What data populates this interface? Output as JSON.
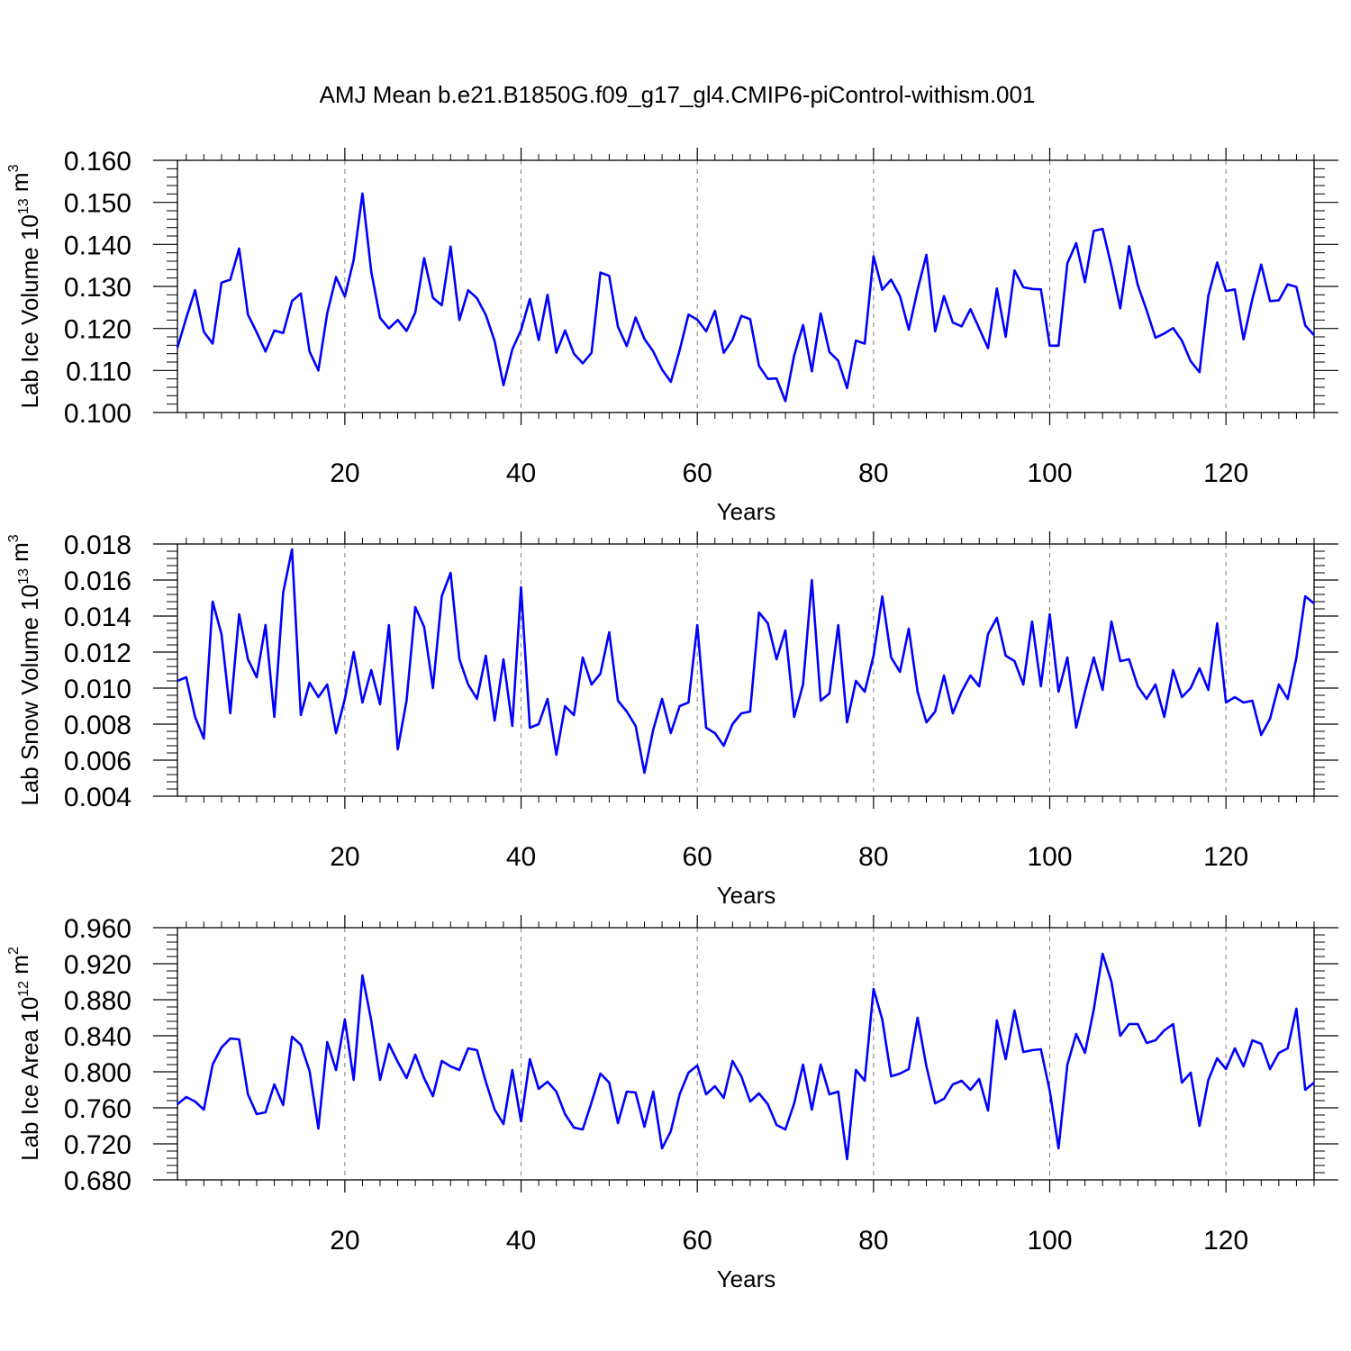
{
  "title": "AMJ Mean b.e21.B1850G.f09_g17_gl4.CMIP6-piControl-withism.001",
  "colors": {
    "series": "#0000ff",
    "axis": "#000000",
    "grid": "#808080"
  },
  "chart_data": [
    {
      "type": "line",
      "ylabel": {
        "text": "Lab Ice Volume 10",
        "sup1": "13",
        "mid": " m",
        "sup2": "3"
      },
      "xlabel": "Years",
      "xlim": [
        1,
        130
      ],
      "ylim": [
        0.1,
        0.16
      ],
      "xticks": [
        20,
        40,
        60,
        80,
        100,
        120
      ],
      "xtick_labels": [
        "20",
        "40",
        "60",
        "80",
        "100",
        "120"
      ],
      "yticks": [
        0.1,
        0.11,
        0.12,
        0.13,
        0.14,
        0.15,
        0.16
      ],
      "ytick_labels": [
        "0.100",
        "0.110",
        "0.120",
        "0.130",
        "0.140",
        "0.150",
        "0.160"
      ],
      "grid": "dashed vertical at x ticks",
      "x": [
        1,
        2,
        3,
        4,
        5,
        6,
        7,
        8,
        9,
        10,
        11,
        12,
        13,
        14,
        15,
        16,
        17,
        18,
        19,
        20,
        21,
        22,
        23,
        24,
        25,
        26,
        27,
        28,
        29,
        30,
        31,
        32,
        33,
        34,
        35,
        36,
        37,
        38,
        39,
        40,
        41,
        42,
        43,
        44,
        45,
        46,
        47,
        48,
        49,
        50,
        51,
        52,
        53,
        54,
        55,
        56,
        57,
        58,
        59,
        60,
        61,
        62,
        63,
        64,
        65,
        66,
        67,
        68,
        69,
        70,
        71,
        72,
        73,
        74,
        75,
        76,
        77,
        78,
        79,
        80,
        81,
        82,
        83,
        84,
        85,
        86,
        87,
        88,
        89,
        90,
        91,
        92,
        93,
        94,
        95,
        96,
        97,
        98,
        99,
        100,
        101,
        102,
        103,
        104,
        105,
        106,
        107,
        108,
        109,
        110,
        111,
        112,
        113,
        114,
        115,
        116,
        117,
        118,
        119,
        120,
        121,
        122,
        123,
        124,
        125,
        126,
        127,
        128,
        129,
        130
      ],
      "values": [
        0.1154,
        0.1225,
        0.1291,
        0.1192,
        0.1164,
        0.1309,
        0.1316,
        0.139,
        0.1233,
        0.1191,
        0.1145,
        0.1195,
        0.1189,
        0.1265,
        0.1283,
        0.1145,
        0.11,
        0.1236,
        0.1322,
        0.1276,
        0.1363,
        0.1521,
        0.1335,
        0.1225,
        0.12,
        0.122,
        0.1194,
        0.1238,
        0.1367,
        0.1273,
        0.1255,
        0.1395,
        0.122,
        0.1291,
        0.1272,
        0.1232,
        0.117,
        0.1065,
        0.115,
        0.1196,
        0.127,
        0.1172,
        0.128,
        0.1142,
        0.1195,
        0.114,
        0.1117,
        0.1142,
        0.1333,
        0.1325,
        0.1204,
        0.1158,
        0.1226,
        0.1175,
        0.1145,
        0.1102,
        0.1073,
        0.1148,
        0.1233,
        0.1221,
        0.1193,
        0.1242,
        0.1142,
        0.1173,
        0.123,
        0.1222,
        0.1111,
        0.108,
        0.1081,
        0.1027,
        0.1136,
        0.1208,
        0.1098,
        0.1236,
        0.1144,
        0.1123,
        0.1058,
        0.1171,
        0.1164,
        0.1372,
        0.1292,
        0.1316,
        0.1277,
        0.1197,
        0.1292,
        0.1375,
        0.1193,
        0.1277,
        0.1214,
        0.1205,
        0.1246,
        0.12,
        0.1153,
        0.1295,
        0.118,
        0.1338,
        0.1298,
        0.1294,
        0.1293,
        0.1159,
        0.1159,
        0.1355,
        0.1403,
        0.131,
        0.1432,
        0.1437,
        0.1348,
        0.1248,
        0.1396,
        0.1303,
        0.1243,
        0.1178,
        0.1188,
        0.1201,
        0.1171,
        0.1122,
        0.1096,
        0.1278,
        0.1357,
        0.1289,
        0.1293,
        0.1174,
        0.127,
        0.1352,
        0.1265,
        0.1267,
        0.1305,
        0.1299,
        0.1207,
        0.1184
      ]
    },
    {
      "type": "line",
      "ylabel": {
        "text": "Lab Snow Volume 10",
        "sup1": "13",
        "mid": " m",
        "sup2": "3"
      },
      "xlabel": "Years",
      "xlim": [
        1,
        130
      ],
      "ylim": [
        0.004,
        0.018
      ],
      "xticks": [
        20,
        40,
        60,
        80,
        100,
        120
      ],
      "xtick_labels": [
        "20",
        "40",
        "60",
        "80",
        "100",
        "120"
      ],
      "yticks": [
        0.004,
        0.006,
        0.008,
        0.01,
        0.012,
        0.014,
        0.016,
        0.018
      ],
      "ytick_labels": [
        "0.004",
        "0.006",
        "0.008",
        "0.010",
        "0.012",
        "0.014",
        "0.016",
        "0.018"
      ],
      "grid": "dashed vertical at x ticks",
      "x": [
        1,
        2,
        3,
        4,
        5,
        6,
        7,
        8,
        9,
        10,
        11,
        12,
        13,
        14,
        15,
        16,
        17,
        18,
        19,
        20,
        21,
        22,
        23,
        24,
        25,
        26,
        27,
        28,
        29,
        30,
        31,
        32,
        33,
        34,
        35,
        36,
        37,
        38,
        39,
        40,
        41,
        42,
        43,
        44,
        45,
        46,
        47,
        48,
        49,
        50,
        51,
        52,
        53,
        54,
        55,
        56,
        57,
        58,
        59,
        60,
        61,
        62,
        63,
        64,
        65,
        66,
        67,
        68,
        69,
        70,
        71,
        72,
        73,
        74,
        75,
        76,
        77,
        78,
        79,
        80,
        81,
        82,
        83,
        84,
        85,
        86,
        87,
        88,
        89,
        90,
        91,
        92,
        93,
        94,
        95,
        96,
        97,
        98,
        99,
        100,
        101,
        102,
        103,
        104,
        105,
        106,
        107,
        108,
        109,
        110,
        111,
        112,
        113,
        114,
        115,
        116,
        117,
        118,
        119,
        120,
        121,
        122,
        123,
        124,
        125,
        126,
        127,
        128,
        129,
        130
      ],
      "values": [
        0.0104,
        0.0106,
        0.0084,
        0.0072,
        0.0148,
        0.013,
        0.0086,
        0.0141,
        0.0116,
        0.0106,
        0.0135,
        0.0084,
        0.0153,
        0.0177,
        0.0085,
        0.0103,
        0.0095,
        0.0102,
        0.0075,
        0.0094,
        0.012,
        0.0092,
        0.011,
        0.0091,
        0.0135,
        0.0066,
        0.0093,
        0.0145,
        0.0134,
        0.01,
        0.0151,
        0.0164,
        0.0116,
        0.0102,
        0.0094,
        0.0118,
        0.0082,
        0.0116,
        0.0079,
        0.0156,
        0.0078,
        0.008,
        0.0094,
        0.0063,
        0.009,
        0.0085,
        0.0117,
        0.0102,
        0.0108,
        0.0131,
        0.0093,
        0.0087,
        0.0079,
        0.0053,
        0.0077,
        0.0094,
        0.0075,
        0.009,
        0.0092,
        0.0135,
        0.0078,
        0.0075,
        0.0068,
        0.008,
        0.0086,
        0.0087,
        0.0142,
        0.0136,
        0.0116,
        0.0132,
        0.0084,
        0.0102,
        0.016,
        0.0093,
        0.0097,
        0.0135,
        0.0081,
        0.0104,
        0.0098,
        0.0118,
        0.0151,
        0.0117,
        0.0109,
        0.0133,
        0.0098,
        0.0081,
        0.0087,
        0.0107,
        0.0086,
        0.0098,
        0.0107,
        0.0101,
        0.013,
        0.0139,
        0.0118,
        0.0115,
        0.0102,
        0.0137,
        0.0101,
        0.0141,
        0.0098,
        0.0117,
        0.0078,
        0.0098,
        0.0117,
        0.0099,
        0.0137,
        0.0115,
        0.0116,
        0.0101,
        0.0094,
        0.0102,
        0.0084,
        0.011,
        0.0095,
        0.01,
        0.0111,
        0.0099,
        0.0136,
        0.0092,
        0.0095,
        0.0092,
        0.0093,
        0.0074,
        0.0083,
        0.0102,
        0.0094,
        0.0117,
        0.0151,
        0.0147
      ]
    },
    {
      "type": "line",
      "ylabel": {
        "text": "Lab Ice Area 10",
        "sup1": "12",
        "mid": " m",
        "sup2": "2"
      },
      "xlabel": "Years",
      "xlim": [
        1,
        130
      ],
      "ylim": [
        0.68,
        0.96
      ],
      "xticks": [
        20,
        40,
        60,
        80,
        100,
        120
      ],
      "xtick_labels": [
        "20",
        "40",
        "60",
        "80",
        "100",
        "120"
      ],
      "yticks": [
        0.68,
        0.72,
        0.76,
        0.8,
        0.84,
        0.88,
        0.92,
        0.96
      ],
      "ytick_labels": [
        "0.680",
        "0.720",
        "0.760",
        "0.800",
        "0.840",
        "0.880",
        "0.920",
        "0.960"
      ],
      "grid": "dashed vertical at x ticks",
      "x": [
        1,
        2,
        3,
        4,
        5,
        6,
        7,
        8,
        9,
        10,
        11,
        12,
        13,
        14,
        15,
        16,
        17,
        18,
        19,
        20,
        21,
        22,
        23,
        24,
        25,
        26,
        27,
        28,
        29,
        30,
        31,
        32,
        33,
        34,
        35,
        36,
        37,
        38,
        39,
        40,
        41,
        42,
        43,
        44,
        45,
        46,
        47,
        48,
        49,
        50,
        51,
        52,
        53,
        54,
        55,
        56,
        57,
        58,
        59,
        60,
        61,
        62,
        63,
        64,
        65,
        66,
        67,
        68,
        69,
        70,
        71,
        72,
        73,
        74,
        75,
        76,
        77,
        78,
        79,
        80,
        81,
        82,
        83,
        84,
        85,
        86,
        87,
        88,
        89,
        90,
        91,
        92,
        93,
        94,
        95,
        96,
        97,
        98,
        99,
        100,
        101,
        102,
        103,
        104,
        105,
        106,
        107,
        108,
        109,
        110,
        111,
        112,
        113,
        114,
        115,
        116,
        117,
        118,
        119,
        120,
        121,
        122,
        123,
        124,
        125,
        126,
        127,
        128,
        129,
        130
      ],
      "values": [
        0.764,
        0.772,
        0.767,
        0.758,
        0.808,
        0.827,
        0.837,
        0.836,
        0.775,
        0.753,
        0.755,
        0.786,
        0.763,
        0.839,
        0.83,
        0.801,
        0.737,
        0.833,
        0.802,
        0.858,
        0.791,
        0.907,
        0.857,
        0.791,
        0.831,
        0.811,
        0.793,
        0.819,
        0.793,
        0.773,
        0.812,
        0.806,
        0.802,
        0.826,
        0.824,
        0.789,
        0.758,
        0.742,
        0.802,
        0.745,
        0.814,
        0.781,
        0.789,
        0.778,
        0.753,
        0.738,
        0.736,
        0.766,
        0.798,
        0.788,
        0.743,
        0.778,
        0.777,
        0.739,
        0.778,
        0.715,
        0.734,
        0.775,
        0.799,
        0.807,
        0.775,
        0.784,
        0.771,
        0.812,
        0.795,
        0.767,
        0.776,
        0.764,
        0.741,
        0.736,
        0.765,
        0.808,
        0.758,
        0.808,
        0.775,
        0.778,
        0.703,
        0.802,
        0.79,
        0.892,
        0.858,
        0.795,
        0.798,
        0.803,
        0.86,
        0.806,
        0.765,
        0.77,
        0.786,
        0.79,
        0.78,
        0.792,
        0.757,
        0.857,
        0.814,
        0.868,
        0.822,
        0.824,
        0.825,
        0.779,
        0.715,
        0.808,
        0.842,
        0.821,
        0.869,
        0.931,
        0.9,
        0.84,
        0.853,
        0.853,
        0.832,
        0.835,
        0.846,
        0.853,
        0.788,
        0.799,
        0.74,
        0.791,
        0.815,
        0.803,
        0.826,
        0.806,
        0.835,
        0.831,
        0.803,
        0.821,
        0.826,
        0.87,
        0.78,
        0.788
      ]
    }
  ]
}
